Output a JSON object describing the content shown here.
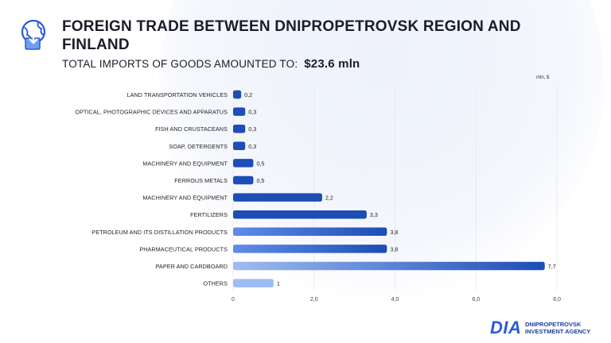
{
  "header": {
    "title": "FOREIGN TRADE BETWEEN DNIPROPETROVSK REGION AND FINLAND",
    "subtitle_label": "TOTAL IMPORTS OF GOODS AMOUNTED TO:",
    "subtitle_value": "$23.6 mln"
  },
  "footer": {
    "logo_mark": "DIA",
    "agency_line1": "DNIPROPETROVSK",
    "agency_line2": "INVESTMENT AGENCY"
  },
  "chart_data": {
    "type": "bar",
    "orientation": "horizontal",
    "unit_label": "mln, $",
    "categories": [
      "LAND TRANSPORTATION VEHICLES",
      "OPTICAL, PHOTOGRAPHIC DEVICES AND APPARATUS",
      "FISH AND CRUSTACEANS",
      "SOAP, DETERGENTS",
      "MACHINERY AND EQUIPMENT",
      "FERROUS METALS",
      "MACHINERY AND EQUIPMENT",
      "FERTILIZERS",
      "PETROLEUM AND ITS DISTILLATION PRODUCTS",
      "PHARMACEUTICAL PRODUCTS",
      "PAPER AND CARDBOARD",
      "OTHERS"
    ],
    "values": [
      0.2,
      0.3,
      0.3,
      0.3,
      0.5,
      0.5,
      2.2,
      3.3,
      3.8,
      3.8,
      7.7,
      1
    ],
    "value_labels": [
      "0,2",
      "0,3",
      "0,3",
      "0,3",
      "0,5",
      "0,5",
      "2,2",
      "3,3",
      "3,8",
      "3,8",
      "7,7",
      "1"
    ],
    "bar_styles": [
      "dark",
      "dark",
      "dark",
      "dark",
      "dark",
      "dark",
      "dark",
      "dark",
      "gradient",
      "gradient",
      "light-gradient",
      "light"
    ],
    "xlim": [
      0,
      8
    ],
    "xticks": [
      0,
      2,
      4,
      6,
      8
    ],
    "xtick_labels": [
      "0",
      "2,0",
      "4,0",
      "6,0",
      "8,0"
    ],
    "grid": true,
    "colors": {
      "dark": "#1d4db5",
      "gradient_start": "#5f8ee6",
      "gradient_end": "#1d4db5",
      "light": "#9dbcf2",
      "grid": "#e6e8ee"
    }
  }
}
